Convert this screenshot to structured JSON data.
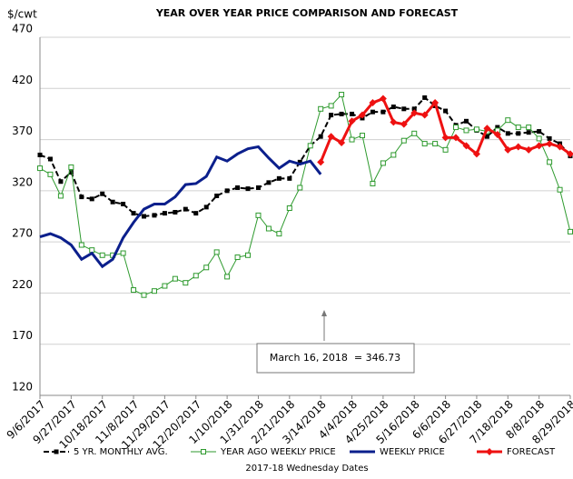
{
  "chart_data": {
    "type": "line",
    "title": "YEAR OVER YEAR PRICE COMPARISON AND FORECAST",
    "y_label": "$/cwt",
    "x_label": "2017-18 Wednesday Dates",
    "annotation": "March 16, 2018  = 346.73",
    "categories": [
      "9/6/2017",
      null,
      null,
      "9/27/2017",
      null,
      null,
      "10/18/2017",
      null,
      null,
      "11/8/2017",
      null,
      null,
      "11/29/2017",
      null,
      null,
      "12/20/2017",
      null,
      null,
      "1/10/2018",
      null,
      null,
      "1/31/2018",
      null,
      null,
      "2/21/2018",
      null,
      null,
      "3/14/2018",
      null,
      null,
      "4/4/2018",
      null,
      null,
      "4/25/2018",
      null,
      null,
      "5/16/2018",
      null,
      null,
      "6/6/2018",
      null,
      null,
      "6/27/2018",
      null,
      null,
      "7/18/2018",
      null,
      null,
      "8/8/2018",
      null,
      null,
      "8/29/2018"
    ],
    "ylim": [
      120,
      470
    ],
    "yticks": [
      120,
      170,
      220,
      270,
      320,
      370,
      420,
      470
    ],
    "grid": true,
    "legend": "bottom",
    "series": [
      {
        "name": "5 YR. MONTHLY AVG.",
        "color": "#000000",
        "dashed": true,
        "marker": "filled-square",
        "width": 2,
        "values": [
          355,
          351,
          329,
          338,
          314,
          312,
          317,
          309,
          307,
          298,
          295,
          296,
          298,
          299,
          302,
          298,
          304,
          315,
          320,
          323,
          322,
          323,
          328,
          332,
          332,
          348,
          364,
          373,
          394,
          395,
          395,
          391,
          397,
          397,
          402,
          400,
          400,
          411,
          403,
          398,
          384,
          388,
          379,
          373,
          382,
          376,
          376,
          377,
          378,
          371,
          366,
          354
        ]
      },
      {
        "name": "YEAR AGO WEEKLY PRICE",
        "color": "#2e9a2e",
        "dashed": false,
        "marker": "open-square",
        "width": 1,
        "values": [
          342,
          336,
          315,
          343,
          267,
          262,
          257,
          257,
          259,
          223,
          218,
          222,
          227,
          234,
          230,
          237,
          245,
          260,
          236,
          255,
          257,
          296,
          283,
          278,
          303,
          323,
          364,
          400,
          403,
          414,
          370,
          374,
          327,
          347,
          355,
          369,
          376,
          366,
          366,
          360,
          382,
          379,
          380,
          378,
          379,
          389,
          382,
          382,
          371,
          348,
          321,
          280
        ]
      },
      {
        "name": "WEEKLY PRICE",
        "color": "#0b1f8c",
        "dashed": false,
        "marker": "none",
        "width": 3,
        "values": [
          275,
          278,
          274,
          267,
          253,
          259,
          246,
          253,
          274,
          289,
          302,
          307,
          307,
          314,
          326,
          327,
          334,
          353,
          349,
          356,
          361,
          363,
          352,
          342,
          349,
          346,
          349,
          336,
          null,
          null,
          null,
          null,
          null,
          null,
          null,
          null,
          null,
          null,
          null,
          null,
          null,
          null,
          null,
          null,
          null,
          null,
          null,
          null,
          null,
          null,
          null,
          null
        ]
      },
      {
        "name": "FORECAST",
        "color": "#ee1111",
        "dashed": false,
        "marker": "diamond",
        "width": 3,
        "values": [
          null,
          null,
          null,
          null,
          null,
          null,
          null,
          null,
          null,
          null,
          null,
          null,
          null,
          null,
          null,
          null,
          null,
          null,
          null,
          null,
          null,
          null,
          null,
          null,
          null,
          null,
          null,
          348,
          373,
          367,
          388,
          394,
          406,
          410,
          387,
          385,
          396,
          394,
          406,
          372,
          372,
          364,
          356,
          381,
          375,
          360,
          363,
          360,
          364,
          366,
          363,
          356
        ]
      }
    ]
  }
}
